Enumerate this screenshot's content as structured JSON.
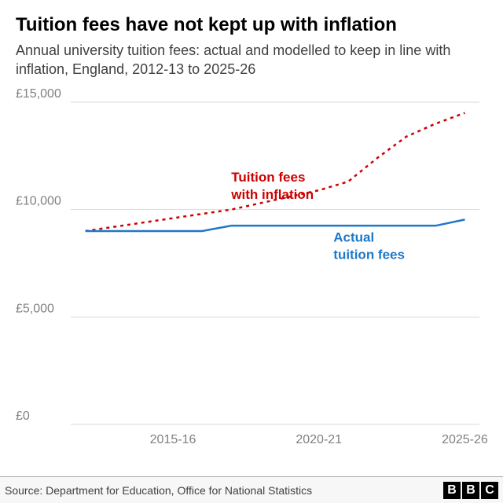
{
  "title": "Tuition fees have not kept up with inflation",
  "subtitle": "Annual university tuition fees: actual and modelled to keep in line with inflation, England, 2012-13 to 2025-26",
  "chart": {
    "type": "line",
    "background_color": "#ffffff",
    "grid_color": "#d9d9d9",
    "axis_label_color": "#808080",
    "axis_fontsize": 16,
    "x_domain": [
      2012,
      2026
    ],
    "x_ticks": [
      {
        "value": 2015.5,
        "label": "2015-16"
      },
      {
        "value": 2020.5,
        "label": "2020-21"
      },
      {
        "value": 2025.5,
        "label": "2025-26"
      }
    ],
    "y_domain": [
      0,
      15000
    ],
    "y_ticks": [
      {
        "value": 0,
        "label": "£0"
      },
      {
        "value": 5000,
        "label": "£5,000"
      },
      {
        "value": 10000,
        "label": "£10,000"
      },
      {
        "value": 15000,
        "label": "£15,000"
      }
    ],
    "series": [
      {
        "name": "inflation",
        "label_line1": "Tuition fees",
        "label_line2": "with inflation",
        "color": "#cc0000",
        "stroke_width": 2.5,
        "dash": "4 5",
        "label_x": 2017.5,
        "label_y": 11300,
        "points": [
          [
            2012.5,
            9000
          ],
          [
            2013.5,
            9200
          ],
          [
            2014.5,
            9400
          ],
          [
            2015.5,
            9600
          ],
          [
            2016.5,
            9800
          ],
          [
            2017.5,
            10000
          ],
          [
            2018.5,
            10300
          ],
          [
            2019.5,
            10600
          ],
          [
            2020.5,
            10900
          ],
          [
            2021.5,
            11300
          ],
          [
            2022.5,
            12400
          ],
          [
            2023.5,
            13400
          ],
          [
            2024.5,
            14000
          ],
          [
            2025.5,
            14500
          ]
        ]
      },
      {
        "name": "actual",
        "label_line1": "Actual",
        "label_line2": "tuition fees",
        "color": "#1e78c8",
        "stroke_width": 2.5,
        "dash": "",
        "label_x": 2021.0,
        "label_y": 8500,
        "points": [
          [
            2012.5,
            9000
          ],
          [
            2013.5,
            9000
          ],
          [
            2014.5,
            9000
          ],
          [
            2015.5,
            9000
          ],
          [
            2016.5,
            9000
          ],
          [
            2017.5,
            9250
          ],
          [
            2018.5,
            9250
          ],
          [
            2019.5,
            9250
          ],
          [
            2020.5,
            9250
          ],
          [
            2021.5,
            9250
          ],
          [
            2022.5,
            9250
          ],
          [
            2023.5,
            9250
          ],
          [
            2024.5,
            9250
          ],
          [
            2025.5,
            9535
          ]
        ]
      }
    ]
  },
  "footer": {
    "source": "Source: Department for Education, Office for National Statistics",
    "logo": [
      "B",
      "B",
      "C"
    ]
  }
}
